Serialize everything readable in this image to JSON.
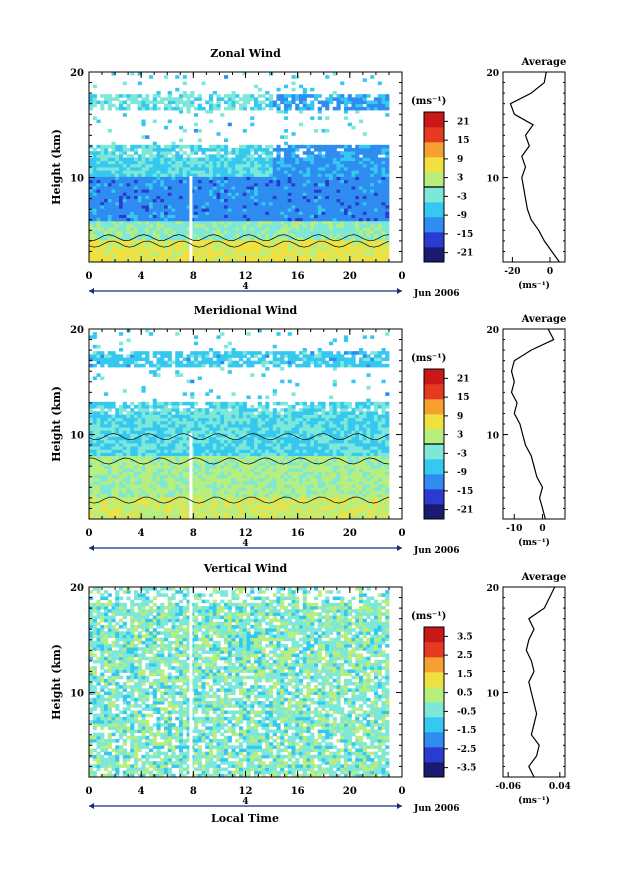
{
  "figure": {
    "xlabel": "Local Time",
    "date_label": "Jun 2006",
    "day_label": "4"
  },
  "chart_data": [
    {
      "type": "heatmap",
      "title": "Zonal Wind",
      "ylabel": "Height (km)",
      "xlabel": "Local Time",
      "xlim": [
        0,
        24
      ],
      "ylim": [
        2,
        20
      ],
      "xticks": [
        "0",
        "4",
        "8",
        "12",
        "16",
        "20",
        "0"
      ],
      "yticks": [
        "10",
        "20"
      ],
      "colorbar": {
        "unit": "(ms⁻¹)",
        "ticks": [
          "21",
          "15",
          "9",
          "3",
          "-3",
          "-9",
          "-15",
          "-21"
        ],
        "range": [
          -24,
          24
        ],
        "zero_line": true
      },
      "description_layers": [
        {
          "from_km": 2,
          "to_km": 4,
          "value": 6
        },
        {
          "from_km": 4,
          "to_km": 6,
          "value": -1
        },
        {
          "from_km": 6,
          "to_km": 10,
          "value": -12
        },
        {
          "from_km": 10,
          "to_km": 13,
          "value": -5
        },
        {
          "from_km": 16.5,
          "to_km": 18,
          "value": -4
        }
      ],
      "average": {
        "title": "Average",
        "xlabel": "(ms⁻¹)",
        "xticks": [
          "-20",
          "0"
        ],
        "xlim": [
          -25,
          8
        ],
        "heights": [
          2,
          3,
          4,
          5,
          6,
          7,
          8,
          9,
          10,
          11,
          12,
          13,
          14,
          15,
          16,
          17,
          18,
          19,
          20
        ],
        "values": [
          5,
          1,
          -3,
          -6,
          -10,
          -12,
          -13,
          -14,
          -15,
          -13,
          -15,
          -11,
          -13,
          -9,
          -19,
          -21,
          -10,
          -3,
          -2
        ]
      }
    },
    {
      "type": "heatmap",
      "title": "Meridional Wind",
      "ylabel": "Height (km)",
      "xlabel": "Local Time",
      "xlim": [
        0,
        24
      ],
      "ylim": [
        2,
        20
      ],
      "xticks": [
        "0",
        "4",
        "8",
        "12",
        "16",
        "20",
        "0"
      ],
      "yticks": [
        "10",
        "20"
      ],
      "colorbar": {
        "unit": "(ms⁻¹)",
        "ticks": [
          "21",
          "15",
          "9",
          "3",
          "-3",
          "-9",
          "-15",
          "-21"
        ],
        "range": [
          -24,
          24
        ],
        "zero_line": true
      },
      "description_layers": [
        {
          "from_km": 2,
          "to_km": 4,
          "value": 4
        },
        {
          "from_km": 4,
          "to_km": 8,
          "value": 1
        },
        {
          "from_km": 8,
          "to_km": 13,
          "value": -5
        },
        {
          "from_km": 16.5,
          "to_km": 18,
          "value": -7
        }
      ],
      "average": {
        "title": "Average",
        "xlabel": "(ms⁻¹)",
        "xticks": [
          "-10",
          "0"
        ],
        "xlim": [
          -14,
          8
        ],
        "heights": [
          2,
          3,
          4,
          5,
          6,
          7,
          8,
          9,
          10,
          11,
          12,
          13,
          14,
          15,
          16,
          17,
          18,
          19,
          20
        ],
        "values": [
          1,
          0,
          -1,
          0,
          -2,
          -3,
          -4,
          -6,
          -7,
          -8,
          -10,
          -9,
          -11,
          -10,
          -11,
          -10,
          -4,
          4,
          2
        ]
      }
    },
    {
      "type": "heatmap",
      "title": "Vertical Wind",
      "ylabel": "Height (km)",
      "xlabel": "Local Time",
      "xlim": [
        0,
        24
      ],
      "ylim": [
        2,
        20
      ],
      "xticks": [
        "0",
        "4",
        "8",
        "12",
        "16",
        "20",
        "0"
      ],
      "yticks": [
        "10",
        "20"
      ],
      "colorbar": {
        "unit": "(ms⁻¹)",
        "ticks": [
          "3.5",
          "2.5",
          "1.5",
          "0.5",
          "-0.5",
          "-1.5",
          "-2.5",
          "-3.5"
        ],
        "range": [
          -4,
          4
        ],
        "zero_line": false
      },
      "description_layers": [
        {
          "from_km": 2,
          "to_km": 20,
          "value": -0.3
        }
      ],
      "average": {
        "title": "Average",
        "xlabel": "(ms⁻¹)",
        "xticks": [
          "-0.06",
          "0.04"
        ],
        "xlim": [
          -0.07,
          0.05
        ],
        "heights": [
          2,
          3,
          4,
          5,
          6,
          7,
          8,
          9,
          10,
          11,
          12,
          13,
          14,
          15,
          16,
          17,
          18,
          19,
          20
        ],
        "values": [
          -0.01,
          -0.02,
          -0.005,
          0.0,
          -0.015,
          -0.01,
          -0.005,
          -0.01,
          -0.015,
          -0.02,
          -0.01,
          -0.015,
          -0.025,
          -0.02,
          -0.01,
          -0.02,
          0.01,
          0.02,
          0.03
        ]
      }
    }
  ]
}
